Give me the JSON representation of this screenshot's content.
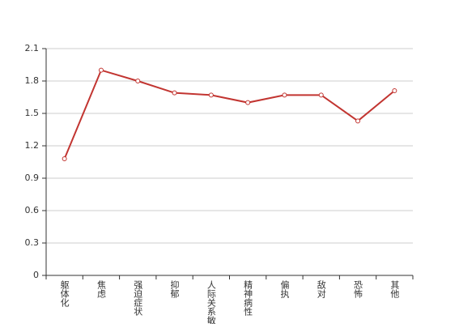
{
  "chart_data": {
    "type": "line",
    "categories": [
      "躯体化",
      "焦虑",
      "强迫症状",
      "抑郁",
      "人际关系敏感",
      "精神病性",
      "偏执",
      "敌对",
      "恐怖",
      "其他"
    ],
    "values": [
      1.08,
      1.9,
      1.8,
      1.69,
      1.67,
      1.6,
      1.67,
      1.67,
      1.43,
      1.71
    ],
    "color": "#c23531",
    "ylim": [
      0,
      2.1
    ],
    "yticks": [
      0,
      0.3,
      0.6,
      0.9,
      1.2,
      1.5,
      1.8,
      2.1
    ],
    "grid": true
  }
}
